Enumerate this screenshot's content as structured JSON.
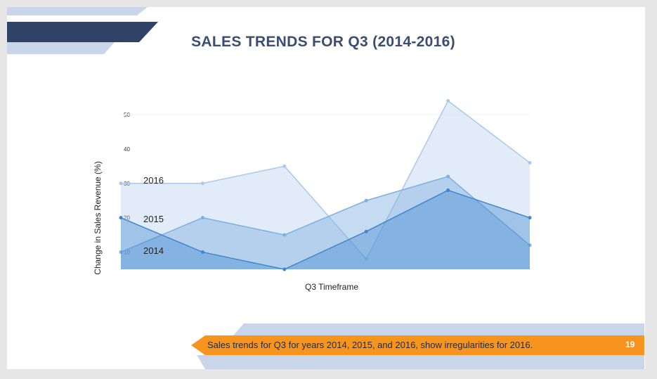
{
  "slide": {
    "title": "SALES TRENDS FOR Q3 (2014-2016)",
    "footer_text": "Sales trends for Q3 for years 2014, 2015, and 2016, show irregularities for 2016.",
    "page_number": "19"
  },
  "colors": {
    "title": "#3b4e72",
    "navy_band": "#2f4267",
    "light_band": "#c9d6ea",
    "footer_orange": "#f7941d",
    "series_2016": "#a9c8ea",
    "series_2015": "#7eafe0",
    "series_2014": "#3f86cf"
  },
  "chart_data": {
    "type": "area",
    "title": "",
    "xlabel": "Q3 Timeframe",
    "ylabel": "Change in Sales Revenue (%)",
    "yticks": [
      "10",
      "20",
      "30",
      "40",
      "50"
    ],
    "ylim": [
      5,
      50
    ],
    "x": [
      1,
      2,
      3,
      4,
      5,
      6
    ],
    "grid": false,
    "series": [
      {
        "name": "2016",
        "color": "#a9c8ea",
        "opacity": 0.35,
        "values": [
          30,
          30,
          35,
          8,
          54,
          36
        ]
      },
      {
        "name": "2015",
        "color": "#7eafe0",
        "opacity": 0.45,
        "values": [
          10,
          20,
          15,
          25,
          32,
          12
        ]
      },
      {
        "name": "2014",
        "color": "#3f86cf",
        "opacity": 0.4,
        "values": [
          20,
          10,
          5,
          16,
          28,
          20
        ]
      }
    ]
  }
}
